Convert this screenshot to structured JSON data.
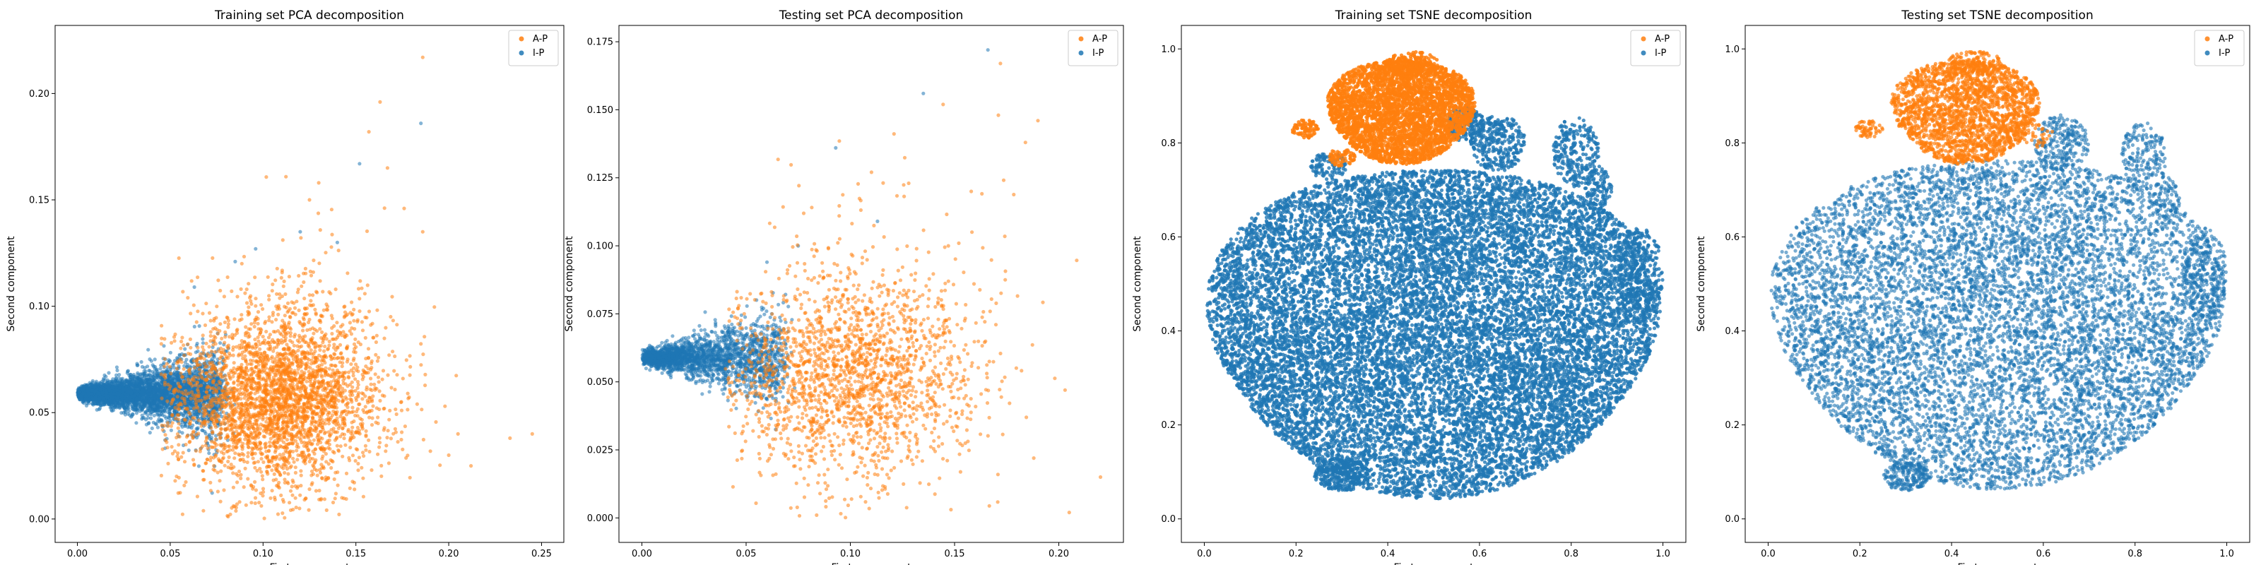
{
  "colors": {
    "A-P": "#ff7f0e",
    "I-P": "#1f77b4"
  },
  "chart_data": [
    {
      "type": "scatter",
      "title": "Training set PCA decomposition",
      "xlabel": "First component",
      "ylabel": "Second component",
      "xlim": [
        -0.012,
        0.262
      ],
      "ylim": [
        -0.011,
        0.232
      ],
      "xticks": [
        0.0,
        0.05,
        0.1,
        0.15,
        0.2,
        0.25
      ],
      "xtick_labels": [
        "0.00",
        "0.05",
        "0.10",
        "0.15",
        "0.20",
        "0.25"
      ],
      "yticks": [
        0.0,
        0.05,
        0.1,
        0.15,
        0.2
      ],
      "ytick_labels": [
        "0.00",
        "0.05",
        "0.10",
        "0.15",
        "0.20"
      ],
      "legend": {
        "position": "top-right",
        "entries": [
          "A-P",
          "I-P"
        ]
      },
      "series": [
        {
          "name": "I-P",
          "color": "#1f77b4",
          "opacity": 0.55,
          "count": 4200,
          "dist": "wedge",
          "apex": [
            0.0,
            0.059
          ],
          "length": 0.075,
          "slope_up": 0.25,
          "slope_down": 0.4,
          "outliers": [
            [
              0.185,
              0.186
            ],
            [
              0.152,
              0.167
            ],
            [
              0.12,
              0.135
            ],
            [
              0.096,
              0.127
            ],
            [
              0.063,
              0.109
            ],
            [
              0.085,
              0.121
            ],
            [
              0.14,
              0.13
            ]
          ]
        },
        {
          "name": "A-P",
          "color": "#ff7f0e",
          "opacity": 0.55,
          "count": 3300,
          "dist": "blob",
          "center": [
            0.108,
            0.055
          ],
          "spread": [
            0.028,
            0.02
          ],
          "tail": [
            [
              0.05,
              0.185
            ],
            [
              0.0,
              0.11
            ]
          ],
          "clip": [
            [
              0.045,
              0.2
            ],
            [
              0.0,
              0.22
            ]
          ],
          "outliers": [
            [
              0.186,
              0.217
            ],
            [
              0.163,
              0.196
            ],
            [
              0.157,
              0.182
            ],
            [
              0.167,
              0.165
            ],
            [
              0.176,
              0.146
            ],
            [
              0.186,
              0.135
            ],
            [
              0.245,
              0.04
            ],
            [
              0.233,
              0.038
            ],
            [
              0.205,
              0.04
            ],
            [
              0.198,
              0.053
            ],
            [
              0.212,
              0.025
            ],
            [
              0.125,
              0.15
            ],
            [
              0.13,
              0.158
            ],
            [
              0.2,
              0.03
            ]
          ]
        }
      ]
    },
    {
      "type": "scatter",
      "title": "Testing set PCA decomposition",
      "xlabel": "First component",
      "ylabel": "Second component",
      "xlim": [
        -0.011,
        0.231
      ],
      "ylim": [
        -0.009,
        0.181
      ],
      "xticks": [
        0.0,
        0.05,
        0.1,
        0.15,
        0.2
      ],
      "xtick_labels": [
        "0.00",
        "0.05",
        "0.10",
        "0.15",
        "0.20"
      ],
      "yticks": [
        0.0,
        0.025,
        0.05,
        0.075,
        0.1,
        0.125,
        0.15,
        0.175
      ],
      "ytick_labels": [
        "0.000",
        "0.025",
        "0.050",
        "0.075",
        "0.100",
        "0.125",
        "0.150",
        "0.175"
      ],
      "legend": {
        "position": "top-right",
        "entries": [
          "A-P",
          "I-P"
        ]
      },
      "series": [
        {
          "name": "I-P",
          "color": "#1f77b4",
          "opacity": 0.55,
          "count": 2200,
          "dist": "wedge",
          "apex": [
            0.0,
            0.059
          ],
          "length": 0.065,
          "slope_up": 0.3,
          "slope_down": 0.36,
          "outliers": [
            [
              0.166,
              0.172
            ],
            [
              0.135,
              0.156
            ],
            [
              0.093,
              0.136
            ],
            [
              0.075,
              0.1
            ],
            [
              0.06,
              0.094
            ],
            [
              0.113,
              0.109
            ]
          ]
        },
        {
          "name": "A-P",
          "color": "#ff7f0e",
          "opacity": 0.55,
          "count": 2000,
          "dist": "blob",
          "center": [
            0.1,
            0.052
          ],
          "spread": [
            0.028,
            0.019
          ],
          "tail": [
            [
              0.05,
              0.175
            ],
            [
              0.0,
              0.09
            ]
          ],
          "clip": [
            [
              0.04,
              0.2
            ],
            [
              0.0,
              0.18
            ]
          ],
          "outliers": [
            [
              0.172,
              0.167
            ],
            [
              0.184,
              0.138
            ],
            [
              0.19,
              0.146
            ],
            [
              0.171,
              0.148
            ],
            [
              0.203,
              0.047
            ],
            [
              0.22,
              0.015
            ],
            [
              0.205,
              0.002
            ],
            [
              0.188,
              0.022
            ],
            [
              0.128,
              0.123
            ],
            [
              0.158,
              0.12
            ],
            [
              0.147,
              0.1
            ]
          ]
        }
      ]
    },
    {
      "type": "scatter",
      "title": "Training set TSNE decomposition",
      "xlabel": "First component",
      "ylabel": "Second component",
      "xlim": [
        -0.05,
        1.05
      ],
      "ylim": [
        -0.05,
        1.05
      ],
      "xticks": [
        0.0,
        0.2,
        0.4,
        0.6,
        0.8,
        1.0
      ],
      "xtick_labels": [
        "0.0",
        "0.2",
        "0.4",
        "0.6",
        "0.8",
        "1.0"
      ],
      "yticks": [
        0.0,
        0.2,
        0.4,
        0.6,
        0.8,
        1.0
      ],
      "ytick_labels": [
        "0.0",
        "0.2",
        "0.4",
        "0.6",
        "0.8",
        "1.0"
      ],
      "legend": {
        "position": "top-right",
        "entries": [
          "A-P",
          "I-P"
        ]
      },
      "series": [
        {
          "name": "I-P",
          "color": "#1f77b4",
          "opacity": 0.8,
          "count": 15000,
          "dist": "ellipse",
          "center": [
            0.5,
            0.41
          ],
          "radius": [
            0.49,
            0.35
          ],
          "patches": [
            [
              0.3,
              0.095,
              0.06,
              0.035,
              300
            ],
            [
              0.81,
              0.78,
              0.05,
              0.075,
              250
            ],
            [
              0.86,
              0.7,
              0.03,
              0.05,
              120
            ],
            [
              0.64,
              0.8,
              0.06,
              0.06,
              300
            ],
            [
              0.95,
              0.52,
              0.05,
              0.1,
              300
            ],
            [
              0.27,
              0.75,
              0.04,
              0.03,
              100
            ],
            [
              0.57,
              0.84,
              0.04,
              0.04,
              200
            ]
          ]
        },
        {
          "name": "A-P",
          "color": "#ff7f0e",
          "opacity": 0.85,
          "count": 3600,
          "dist": "ellipse",
          "center": [
            0.43,
            0.87
          ],
          "radius": [
            0.16,
            0.11
          ],
          "patches": [
            [
              0.22,
              0.83,
              0.03,
              0.02,
              80
            ],
            [
              0.3,
              0.77,
              0.03,
              0.02,
              60
            ],
            [
              0.45,
              0.97,
              0.06,
              0.025,
              150
            ]
          ]
        }
      ]
    },
    {
      "type": "scatter",
      "title": "Testing set TSNE decomposition",
      "xlabel": "First component",
      "ylabel": "Second component",
      "xlim": [
        -0.05,
        1.05
      ],
      "ylim": [
        -0.05,
        1.05
      ],
      "xticks": [
        0.0,
        0.2,
        0.4,
        0.6,
        0.8,
        1.0
      ],
      "xtick_labels": [
        "0.0",
        "0.2",
        "0.4",
        "0.6",
        "0.8",
        "1.0"
      ],
      "yticks": [
        0.0,
        0.2,
        0.4,
        0.6,
        0.8,
        1.0
      ],
      "ytick_labels": [
        "0.0",
        "0.2",
        "0.4",
        "0.6",
        "0.8",
        "1.0"
      ],
      "legend": {
        "position": "top-right",
        "entries": [
          "A-P",
          "I-P"
        ]
      },
      "series": [
        {
          "name": "I-P",
          "color": "#1f77b4",
          "opacity": 0.6,
          "count": 9000,
          "dist": "ellipse",
          "center": [
            0.5,
            0.43
          ],
          "radius": [
            0.49,
            0.35
          ],
          "patches": [
            [
              0.3,
              0.09,
              0.05,
              0.03,
              200
            ],
            [
              0.82,
              0.77,
              0.05,
              0.075,
              200
            ],
            [
              0.87,
              0.68,
              0.03,
              0.05,
              80
            ],
            [
              0.64,
              0.8,
              0.06,
              0.06,
              250
            ],
            [
              0.95,
              0.52,
              0.05,
              0.1,
              250
            ]
          ]
        },
        {
          "name": "A-P",
          "color": "#ff7f0e",
          "opacity": 0.7,
          "count": 2200,
          "dist": "ellipse",
          "center": [
            0.43,
            0.87
          ],
          "radius": [
            0.16,
            0.11
          ],
          "patches": [
            [
              0.22,
              0.83,
              0.03,
              0.02,
              60
            ],
            [
              0.45,
              0.97,
              0.06,
              0.025,
              120
            ],
            [
              0.58,
              0.82,
              0.04,
              0.03,
              40
            ]
          ]
        }
      ]
    }
  ]
}
